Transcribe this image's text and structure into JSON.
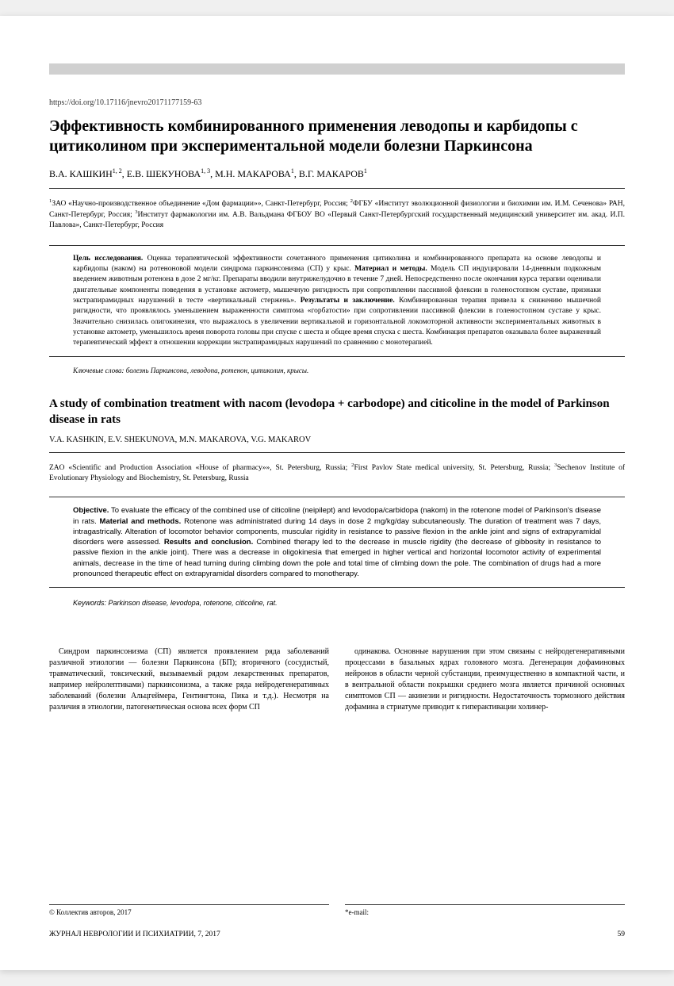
{
  "doi": "https://doi.org/10.17116/jnevro20171177159-63",
  "title_ru": "Эффективность комбинированного применения леводопы и карбидопы с цитиколином при экспериментальной модели болезни Паркинсона",
  "authors_ru_html": "В.А. КАШКИН<sup>1, 2</sup>, Е.В. ШЕКУНОВА<sup>1, 3</sup>, М.Н. МАКАРОВА<sup>1</sup>, В.Г. МАКАРОВ<sup>1</sup>",
  "affiliations_ru_html": "<sup>1</sup>ЗАО «Научно-производственное объединение «Дом фармации»», Санкт-Петербург, Россия; <sup>2</sup>ФГБУ «Институт эволюционной физиологии и биохимии им. И.М. Сеченова» РАН, Санкт-Петербург, Россия; <sup>3</sup>Институт фармакологии им. А.В. Вальдмана ФГБОУ ВО «Первый Санкт-Петербургский государственный медицинский университет им. акад. И.П. Павлова», Санкт-Петербург, Россия",
  "abstract_ru_html": "<b>Цель исследования.</b> Оценка терапевтической эффективности сочетанного применения цитиколина и комбинированного препарата на основе леводопы и карбидопы (наком) на ротеноновой модели синдрома паркинсонизма (СП) у крыс. <b>Материал и методы.</b> Модель СП индуцировали 14-дневным подкожным введением животным ротенона в дозе 2 мг/кг. Препараты вводили внутрижелудочно в течение 7 дней. Непосредственно после окончания курса терапии оценивали двигательные компоненты поведения в установке актометр, мышечную ригидность при сопротивлении пассивной флексии в голеностопном суставе, признаки экстрапирамидных нарушений в тесте «вертикальный стержень». <b>Результаты и заключение.</b> Комбинированная терапия привела к снижению мышечной ригидности, что проявлялось уменьшением выраженности симптома «горбатости» при сопротивлении пассивной флексии в голеностопном суставе у крыс. Значительно снизилась олигокинезия, что выражалось в увеличении вертикальной и горизонтальной локомоторной активности экспериментальных животных в установке актометр, уменьшилось время поворота головы при спуске с шеста и общее время спуска с шеста. Комбинация препаратов оказывала более выраженный терапевтический эффект в отношении коррекции экстрапирамидных нарушений по сравнению с монотерапией.",
  "keywords_ru": "Ключевые слова: болезнь Паркинсона, леводопа, ротенон, цитиколин, крысы.",
  "title_en": "A study of combination treatment with nacom (levodopa + carbodope) and citicoline in the model of Parkinson disease in rats",
  "authors_en": "V.A. KASHKIN, E.V. SHEKUNOVA, M.N. MAKAROVA, V.G. MAKAROV",
  "affiliations_en_html": "ZAO «Scientific and Production Association «House of pharmacy»», St. Petersburg, Russia; <sup>2</sup>First Pavlov State medical university, St. Petersburg, Russia; <sup>3</sup>Sechenov Institute of Evolutionary Physiology and Biochemistry, St. Petersburg, Russia",
  "abstract_en_html": "<b>Objective.</b> To evaluate the efficacy of the combined use of citicoline (neipilept) and levodopa/carbidopa (nakom) in the rotenone model of Parkinson's disease in rats. <b>Material and methods.</b> Rotenone was administrated during 14 days in dose 2 mg/kg/day subcutaneously. The duration of treatment was 7 days, intragastrically. Alteration of locomotor behavior components, muscular rigidity in resistance to passive flexion in the ankle joint and signs of extrapyramidal disorders were assessed. <b>Results and conclusion.</b> Combined therapy led to the decrease in muscle rigidity (the decrease of gibbosity in resistance to passive flexion in the ankle joint). There was a decrease in oligokinesia that emerged in higher vertical and horizontal locomotor activity of experimental animals, decrease in the time of head turning during climbing down the pole and total time of climbing down the pole. The combination of drugs had a more pronounced therapeutic effect on extrapyramidal disorders compared to monotherapy.",
  "keywords_en": "Keywords: Parkinson disease, levodopa, rotenone, citicoline, rat.",
  "body_col1": "Синдром паркинсонизма (СП) является проявлением ряда заболеваний различной этиологии — болезни Паркинсона (БП); вторичного (сосудистый, травматический, токсический, вызываемый рядом лекарственных препаратов, например нейролептиками) паркинсонизма, а также ряда нейродегенеративных заболеваний (болезни Альцгеймера, Гентингтона, Пика и т.д.). Несмотря на различия в этиологии, патогенетическая основа всех форм СП",
  "body_col2": "одинакова. Основные нарушения при этом связаны с нейродегенеративными процессами в базальных ядрах головного мозга. Дегенерация дофаминовых нейронов в области черной субстанции, преимущественно в компактной части, и в вентральной области покрышки среднего мозга является причиной основных симптомов СП — акинезии и ригидности. Недостаточность тормозного действия дофамина в стриатуме приводит к гиперактивации холинер-",
  "copyright": "© Коллектив авторов, 2017",
  "email_label": "*e-mail:",
  "journal": "ЖУРНАЛ НЕВРОЛОГИИ И ПСИХИАТРИИ, 7, 2017",
  "page_number": "59",
  "colors": {
    "header_bar": "#d0d0d0",
    "text": "#000000",
    "page_bg": "#ffffff"
  }
}
